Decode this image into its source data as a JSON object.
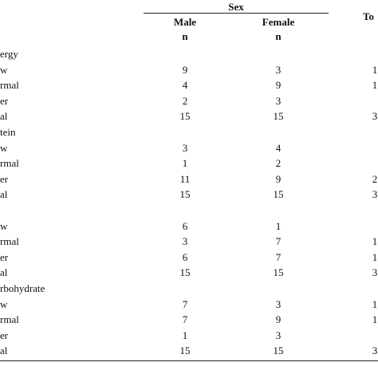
{
  "header": {
    "group": "Sex",
    "total": "To",
    "columns": [
      "Male",
      "Female"
    ],
    "units": [
      "n",
      "n"
    ]
  },
  "sections": [
    {
      "title": "ergy",
      "rows": [
        [
          "w",
          "9",
          "3",
          "1"
        ],
        [
          "rmal",
          "4",
          "9",
          "1"
        ],
        [
          "er",
          "2",
          "3"
        ],
        [
          "al",
          "15",
          "15",
          "3"
        ]
      ]
    },
    {
      "title": "tein",
      "rows": [
        [
          "w",
          "3",
          "4"
        ],
        [
          "rmal",
          "1",
          "2"
        ],
        [
          "er",
          "11",
          "9",
          "2"
        ],
        [
          "al",
          "15",
          "15",
          "3"
        ]
      ]
    },
    {
      "rows": [
        [
          "w",
          "6",
          "1"
        ],
        [
          "rmal",
          "3",
          "7",
          "1"
        ],
        [
          "er",
          "6",
          "7",
          "1"
        ],
        [
          "al",
          "15",
          "15",
          "3"
        ]
      ]
    },
    {
      "title": "rbohydrate",
      "rows": [
        [
          "w",
          "7",
          "3",
          "1"
        ],
        [
          "rmal",
          "7",
          "9",
          "1"
        ],
        [
          "er",
          "1",
          "3"
        ],
        [
          "al",
          "15",
          "15",
          "3"
        ]
      ]
    }
  ]
}
